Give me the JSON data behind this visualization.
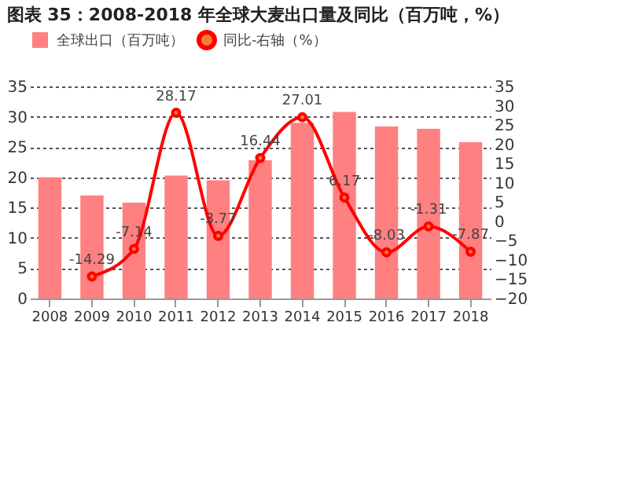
{
  "chart_data": {
    "type": "bar",
    "title": "图表 35：2008-2018 年全球大麦出口量及同比（百万吨，%）",
    "categories": [
      "2008",
      "2009",
      "2010",
      "2011",
      "2012",
      "2013",
      "2014",
      "2015",
      "2016",
      "2017",
      "2018"
    ],
    "series": [
      {
        "name": "全球出口（百万吨）",
        "color": "#ff8080",
        "values": [
          20,
          17,
          15.8,
          20.3,
          19.5,
          22.8,
          29,
          30.8,
          28.4,
          28,
          25.8
        ]
      },
      {
        "name": "同比-右轴（%）",
        "type": "line",
        "axis": "y2",
        "color": "#ff0000",
        "values": [
          null,
          -14.29,
          -7.14,
          28.17,
          -3.77,
          16.44,
          27.01,
          6.17,
          -8.03,
          -1.31,
          -7.87
        ],
        "value_labels": [
          null,
          "-14.29",
          "-7.14",
          "28.17",
          "-3.77",
          "16.44",
          "27.01",
          "6.17",
          "-8.03",
          "-1.31",
          "-7.87"
        ]
      }
    ],
    "ylim": [
      0,
      35
    ],
    "yticks": [
      0,
      5,
      10,
      15,
      20,
      25,
      30,
      35
    ],
    "y2lim": [
      -20,
      35
    ],
    "y2ticks": [
      -20,
      -15,
      -10,
      -5,
      0,
      5,
      10,
      15,
      20,
      25,
      30,
      35
    ],
    "grid": "y",
    "legend": "top",
    "marker": "circle"
  }
}
